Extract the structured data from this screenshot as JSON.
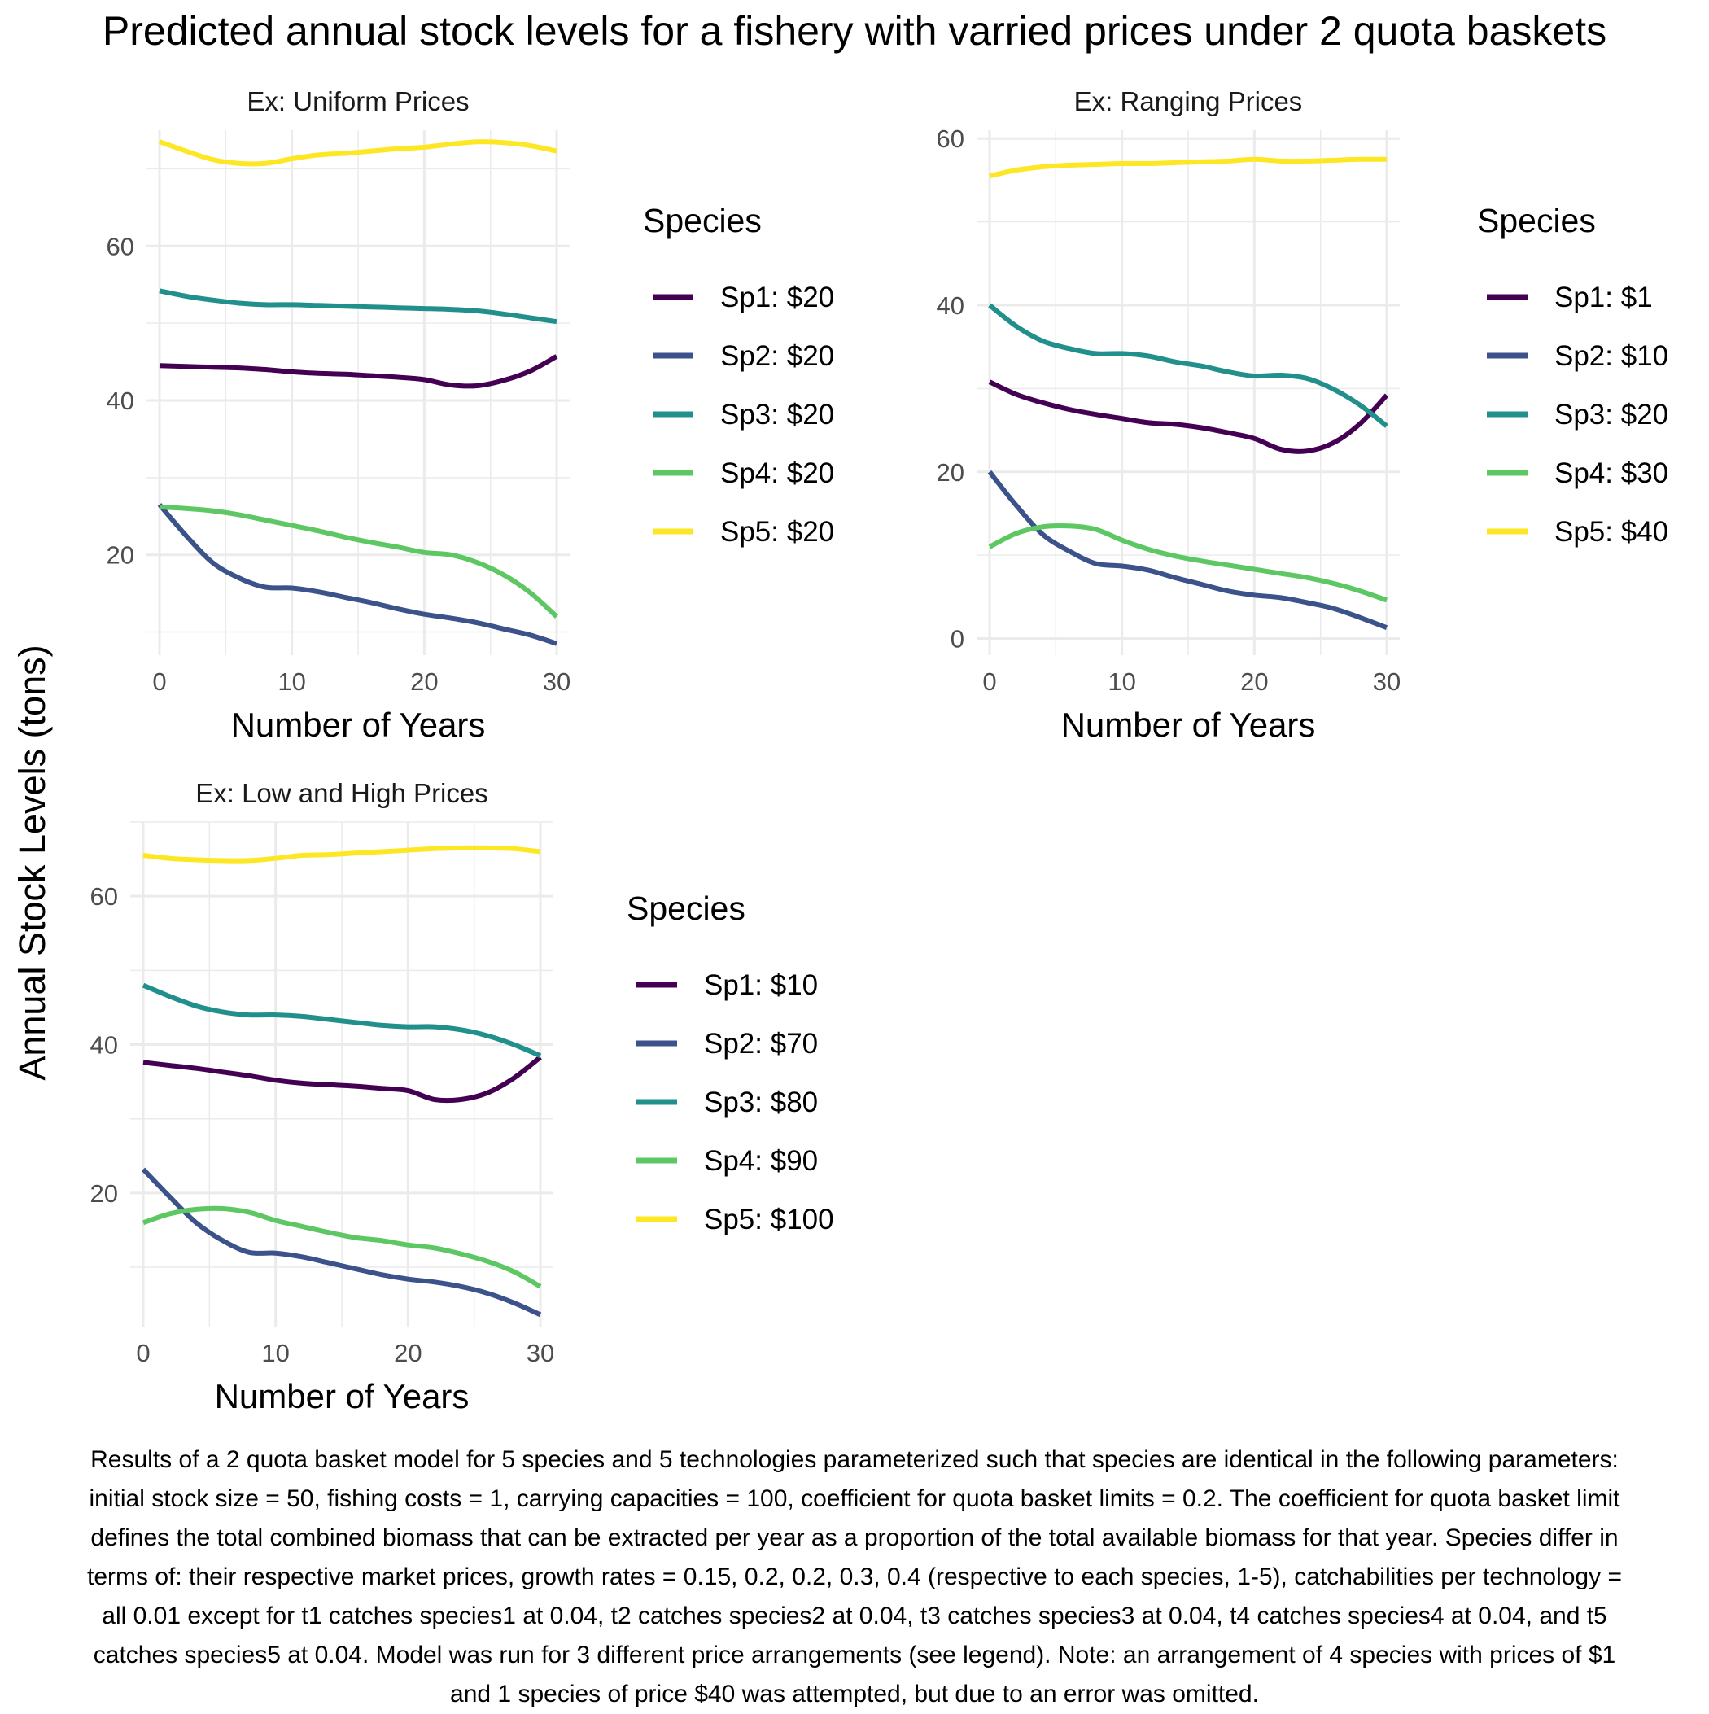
{
  "title": "Predicted annual stock levels for a fishery with varried prices under 2 quota baskets",
  "y_axis_title": "Annual Stock Levels (tons)",
  "caption": "Results of a 2 quota basket model for 5 species and 5 technologies parameterized such that species are identical in the following parameters: initial stock size = 50, fishing costs = 1, carrying capacities = 100, coefficient for quota basket limits = 0.2. The coefficient for quota basket limit defines the total combined biomass that can be extracted per year as a proportion of the total available biomass for that year. Species differ in terms of: their respective market prices, growth rates = 0.15, 0.2, 0.2, 0.3, 0.4 (respective to each species, 1-5), catchabilities per technology = all 0.01 except for t1 catches species1 at 0.04, t2 catches species2 at 0.04, t3 catches species3 at 0.04, t4 catches species4 at 0.04, and t5 catches species5 at 0.04. Model was run for 3 different price arrangements (see legend). Note: an arrangement of 4 species with prices of $1 and 1 species of price $40 was attempted, but due to an error was omitted.",
  "colors": {
    "Sp1": "#440154",
    "Sp2": "#3b528b",
    "Sp3": "#21908c",
    "Sp4": "#5dc863",
    "Sp5": "#fde725",
    "grid": "#ebebeb",
    "tick_label": "#4d4d4d"
  },
  "chart_data": [
    {
      "type": "line",
      "title": "Ex: Uniform Prices",
      "xlabel": "Number of Years",
      "ylabel": "Annual Stock Levels (tons)",
      "xlim": [
        0,
        30
      ],
      "ylim": [
        7,
        75
      ],
      "x_ticks": [
        0,
        10,
        20,
        30
      ],
      "y_ticks": [
        20,
        40,
        60
      ],
      "legend_title": "Species",
      "legend_position": "right",
      "grid": true,
      "x": [
        0,
        2,
        4,
        6,
        8,
        10,
        12,
        14,
        16,
        18,
        20,
        22,
        24,
        26,
        28,
        30
      ],
      "series": [
        {
          "name": "Sp1: $20",
          "key": "Sp1",
          "values": [
            44.5,
            44.4,
            44.3,
            44.2,
            44.0,
            43.7,
            43.5,
            43.4,
            43.2,
            43.0,
            42.7,
            42.0,
            41.9,
            42.6,
            43.8,
            45.7
          ]
        },
        {
          "name": "Sp2: $20",
          "key": "Sp2",
          "values": [
            26.5,
            22.5,
            19.0,
            17.0,
            15.8,
            15.7,
            15.2,
            14.5,
            13.8,
            13.0,
            12.3,
            11.8,
            11.2,
            10.4,
            9.6,
            8.5
          ]
        },
        {
          "name": "Sp3: $20",
          "key": "Sp3",
          "values": [
            54.2,
            53.5,
            53.0,
            52.6,
            52.4,
            52.4,
            52.3,
            52.2,
            52.1,
            52.0,
            51.9,
            51.8,
            51.6,
            51.2,
            50.7,
            50.2
          ]
        },
        {
          "name": "Sp4: $20",
          "key": "Sp4",
          "values": [
            26.2,
            26.0,
            25.7,
            25.2,
            24.5,
            23.8,
            23.1,
            22.3,
            21.6,
            21.0,
            20.3,
            20.0,
            19.0,
            17.4,
            15.1,
            12.0
          ]
        },
        {
          "name": "Sp5: $20",
          "key": "Sp5",
          "values": [
            73.5,
            72.3,
            71.2,
            70.7,
            70.7,
            71.3,
            71.8,
            72.0,
            72.3,
            72.6,
            72.8,
            73.2,
            73.5,
            73.4,
            73.0,
            72.3
          ]
        }
      ]
    },
    {
      "type": "line",
      "title": "Ex: Ranging Prices",
      "xlabel": "Number of Years",
      "ylabel": "Annual Stock Levels (tons)",
      "xlim": [
        0,
        30
      ],
      "ylim": [
        -2,
        61
      ],
      "x_ticks": [
        0,
        10,
        20,
        30
      ],
      "y_ticks": [
        0,
        20,
        40,
        60
      ],
      "legend_title": "Species",
      "legend_position": "right",
      "grid": true,
      "x": [
        0,
        2,
        4,
        6,
        8,
        10,
        12,
        14,
        16,
        18,
        20,
        22,
        24,
        26,
        28,
        30
      ],
      "series": [
        {
          "name": "Sp1: $1",
          "key": "Sp1",
          "values": [
            30.8,
            29.3,
            28.3,
            27.5,
            26.9,
            26.4,
            25.9,
            25.7,
            25.3,
            24.7,
            24.0,
            22.7,
            22.5,
            23.5,
            25.8,
            29.2
          ]
        },
        {
          "name": "Sp2: $10",
          "key": "Sp2",
          "values": [
            20.0,
            16.0,
            12.5,
            10.5,
            9.0,
            8.7,
            8.2,
            7.3,
            6.5,
            5.7,
            5.2,
            4.9,
            4.3,
            3.6,
            2.5,
            1.3
          ]
        },
        {
          "name": "Sp3: $20",
          "key": "Sp3",
          "values": [
            40.0,
            37.5,
            35.7,
            34.8,
            34.2,
            34.2,
            33.9,
            33.2,
            32.7,
            32.0,
            31.5,
            31.6,
            31.2,
            29.9,
            28.0,
            25.5
          ]
        },
        {
          "name": "Sp4: $30",
          "key": "Sp4",
          "values": [
            11.0,
            12.6,
            13.4,
            13.5,
            13.1,
            11.8,
            10.7,
            9.9,
            9.3,
            8.8,
            8.3,
            7.8,
            7.3,
            6.6,
            5.7,
            4.6
          ]
        },
        {
          "name": "Sp5: $40",
          "key": "Sp5",
          "values": [
            55.5,
            56.2,
            56.6,
            56.8,
            56.9,
            57.0,
            57.0,
            57.1,
            57.2,
            57.3,
            57.5,
            57.3,
            57.3,
            57.4,
            57.5,
            57.5
          ]
        }
      ]
    },
    {
      "type": "line",
      "title": "Ex: Low and High Prices",
      "xlabel": "Number of Years",
      "ylabel": "Annual Stock Levels (tons)",
      "xlim": [
        0,
        30
      ],
      "ylim": [
        2,
        70
      ],
      "x_ticks": [
        0,
        10,
        20,
        30
      ],
      "y_ticks": [
        20,
        40,
        60
      ],
      "legend_title": "Species",
      "legend_position": "right",
      "grid": true,
      "x": [
        0,
        2,
        4,
        6,
        8,
        10,
        12,
        14,
        16,
        18,
        20,
        22,
        24,
        26,
        28,
        30
      ],
      "series": [
        {
          "name": "Sp1: $10",
          "key": "Sp1",
          "values": [
            37.6,
            37.2,
            36.8,
            36.3,
            35.8,
            35.2,
            34.8,
            34.6,
            34.4,
            34.1,
            33.8,
            32.6,
            32.6,
            33.5,
            35.5,
            38.3
          ]
        },
        {
          "name": "Sp2: $70",
          "key": "Sp2",
          "values": [
            23.2,
            19.5,
            16.0,
            13.6,
            12.0,
            11.9,
            11.4,
            10.6,
            9.8,
            9.0,
            8.4,
            8.0,
            7.4,
            6.5,
            5.2,
            3.6
          ]
        },
        {
          "name": "Sp3: $80",
          "key": "Sp3",
          "values": [
            48.0,
            46.5,
            45.2,
            44.4,
            44.0,
            44.0,
            43.8,
            43.4,
            43.0,
            42.6,
            42.4,
            42.4,
            42.0,
            41.2,
            40.0,
            38.5
          ]
        },
        {
          "name": "Sp4: $90",
          "key": "Sp4",
          "values": [
            16.0,
            17.2,
            17.8,
            17.9,
            17.4,
            16.3,
            15.5,
            14.7,
            14.0,
            13.6,
            13.0,
            12.6,
            11.8,
            10.8,
            9.4,
            7.4
          ]
        },
        {
          "name": "Sp5: $100",
          "key": "Sp5",
          "values": [
            65.5,
            65.1,
            64.9,
            64.8,
            64.8,
            65.1,
            65.5,
            65.6,
            65.8,
            66.0,
            66.2,
            66.4,
            66.5,
            66.5,
            66.4,
            66.0
          ]
        }
      ]
    }
  ]
}
